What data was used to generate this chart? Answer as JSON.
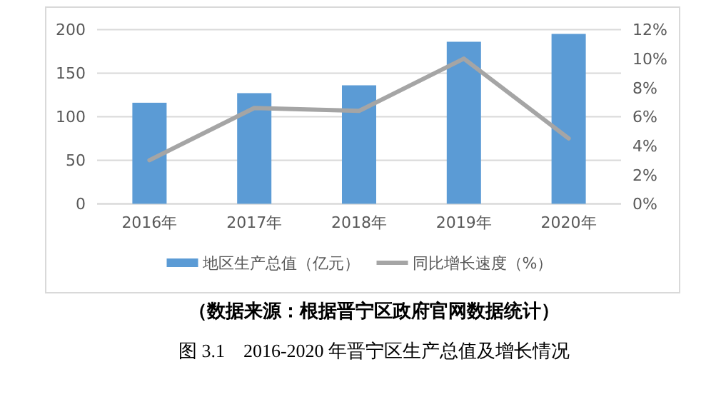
{
  "chart_data": {
    "type": "bar",
    "categories": [
      "2016年",
      "2017年",
      "2018年",
      "2019年",
      "2020年"
    ],
    "series": [
      {
        "name": "地区生产总值（亿元）",
        "color": "#5b9bd5",
        "values": [
          116,
          127,
          136,
          186,
          195
        ]
      },
      {
        "name": "同比增长速度（%）",
        "type": "line",
        "axis": "y2",
        "color": "#a5a5a5",
        "values": [
          3.0,
          6.6,
          6.4,
          10.0,
          4.5
        ]
      }
    ],
    "ylim": [
      0,
      200
    ],
    "yticks": [
      0,
      50,
      100,
      150,
      200
    ],
    "y2lim": [
      0,
      12
    ],
    "y2ticks": [
      {
        "value": 0,
        "label": "0%"
      },
      {
        "value": 2,
        "label": "2%"
      },
      {
        "value": 4,
        "label": "4%"
      },
      {
        "value": 6,
        "label": "6%"
      },
      {
        "value": 8,
        "label": "8%"
      },
      {
        "value": 10,
        "label": "10%"
      },
      {
        "value": 12,
        "label": "12%"
      }
    ],
    "grid": "y",
    "legend": "bottom",
    "annotations": [
      "（数据来源：根据晋宁区政府官网数据统计）",
      "图 3.1　2016-2020 年晋宁区生产总值及增长情况"
    ]
  }
}
